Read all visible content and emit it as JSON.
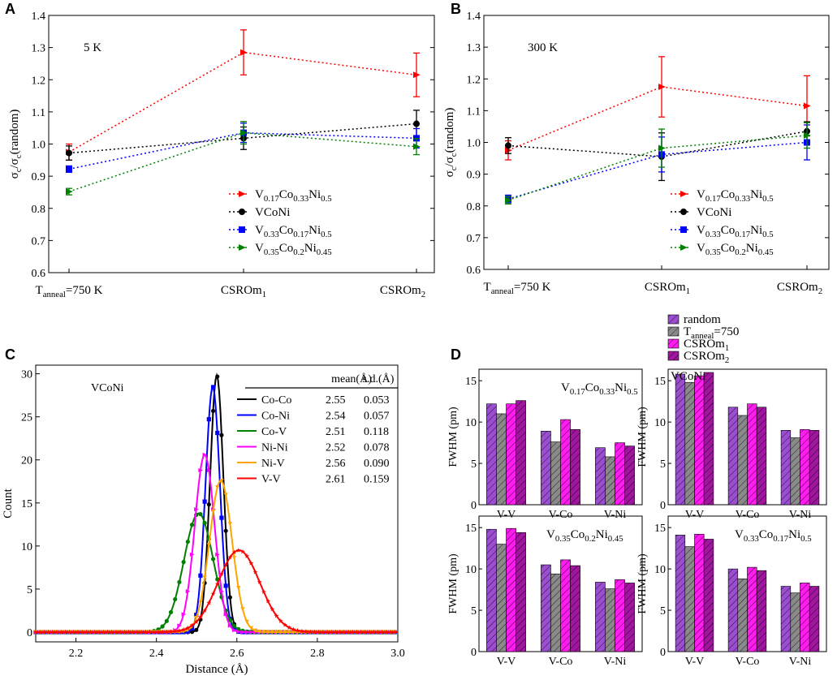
{
  "figure": {
    "panels": [
      "A",
      "B",
      "C",
      "D"
    ]
  },
  "chart_data": [
    {
      "id": "A",
      "type": "line",
      "title": "",
      "annotation": "5 K",
      "ylabel": "σc/σc(random)",
      "categories": [
        "Tanneal=750 K",
        "CSROm1",
        "CSROm2"
      ],
      "ylim": [
        0.6,
        1.4
      ],
      "yticks": [
        "0.6",
        "0.7",
        "0.8",
        "0.9",
        "1.0",
        "1.1",
        "1.2",
        "1.3",
        "1.4"
      ],
      "series": [
        {
          "name": "V0.17Co0.33Ni0.5",
          "color": "#ff0000",
          "marker": "triangle",
          "values": [
            0.975,
            1.285,
            1.215
          ],
          "err": [
            0.025,
            0.07,
            0.068
          ]
        },
        {
          "name": "VCoNi",
          "color": "#000000",
          "marker": "circle",
          "values": [
            0.972,
            1.018,
            1.063
          ],
          "err": [
            0.022,
            0.035,
            0.042
          ]
        },
        {
          "name": "V0.33Co0.17Ni0.5",
          "color": "#0000ff",
          "marker": "square",
          "values": [
            0.922,
            1.035,
            1.018
          ],
          "err": [
            0.01,
            0.03,
            0.03
          ]
        },
        {
          "name": "V0.35Co0.2Ni0.45",
          "color": "#008000",
          "marker": "triangle",
          "values": [
            0.852,
            1.035,
            0.992
          ],
          "err": [
            0.01,
            0.035,
            0.025
          ]
        }
      ]
    },
    {
      "id": "B",
      "type": "line",
      "title": "",
      "annotation": "300 K",
      "ylabel": "σc/σc(random)",
      "categories": [
        "Tanneal=750 K",
        "CSROm1",
        "CSROm2"
      ],
      "ylim": [
        0.6,
        1.4
      ],
      "yticks": [
        "0.6",
        "0.7",
        "0.8",
        "0.9",
        "1.0",
        "1.1",
        "1.2",
        "1.3",
        "1.4"
      ],
      "series": [
        {
          "name": "V0.17Co0.33Ni0.5",
          "color": "#ff0000",
          "marker": "triangle",
          "values": [
            0.975,
            1.175,
            1.115
          ],
          "err": [
            0.03,
            0.095,
            0.095
          ]
        },
        {
          "name": "VCoNi",
          "color": "#000000",
          "marker": "circle",
          "values": [
            0.99,
            0.955,
            1.035
          ],
          "err": [
            0.025,
            0.075,
            0.03
          ]
        },
        {
          "name": "V0.33Co0.17Ni0.5",
          "color": "#0000ff",
          "marker": "square",
          "values": [
            0.822,
            0.962,
            1.0
          ],
          "err": [
            0.012,
            0.055,
            0.055
          ]
        },
        {
          "name": "V0.35Co0.2Ni0.45",
          "color": "#008000",
          "marker": "triangle",
          "values": [
            0.818,
            0.982,
            1.022
          ],
          "err": [
            0.012,
            0.06,
            0.04
          ]
        }
      ]
    },
    {
      "id": "C",
      "type": "line",
      "annotation": "VCoNi",
      "xlabel": "Distance (Å)",
      "ylabel": "Count",
      "xlim": [
        2.1,
        3.0
      ],
      "ylim": [
        0,
        31
      ],
      "xticks": [
        "2.2",
        "2.4",
        "2.6",
        "2.8",
        "3.0"
      ],
      "yticks": [
        "0",
        "5",
        "10",
        "15",
        "20",
        "25",
        "30"
      ],
      "table_headers": [
        "mean(Å)",
        "s.d.(Å)"
      ],
      "series": [
        {
          "name": "Co-Co",
          "color": "#000000",
          "marker": "circle",
          "mean": "2.55",
          "sd": "0.053",
          "mu": 2.55,
          "sigma": 0.0165,
          "peak": 29.8
        },
        {
          "name": "Co-Ni",
          "color": "#0000ff",
          "marker": "square",
          "mean": "2.54",
          "sd": "0.057",
          "mu": 2.54,
          "sigma": 0.0178,
          "peak": 28.5
        },
        {
          "name": "Co-V",
          "color": "#008000",
          "marker": "circle",
          "mean": "2.51",
          "sd": "0.118",
          "mu": 2.505,
          "sigma": 0.0365,
          "peak": 13.8
        },
        {
          "name": "Ni-Ni",
          "color": "#ff00ff",
          "marker": "triangle",
          "mean": "2.52",
          "sd": "0.078",
          "mu": 2.52,
          "sigma": 0.0245,
          "peak": 20.6
        },
        {
          "name": "Ni-V",
          "color": "#ffa500",
          "marker": "tridown",
          "mean": "2.56",
          "sd": "0.090",
          "mu": 2.56,
          "sigma": 0.028,
          "peak": 17.6
        },
        {
          "name": "V-V",
          "color": "#ff0000",
          "marker": "star",
          "mean": "2.61",
          "sd": "0.159",
          "mu": 2.605,
          "sigma": 0.052,
          "peak": 9.5
        }
      ]
    },
    {
      "id": "D",
      "type": "bar",
      "ylabel": "FWHM (pm)",
      "legend": [
        {
          "name": "random",
          "color": "#9b4fd0"
        },
        {
          "name": "Tanneal=750",
          "color": "#8a8a8a"
        },
        {
          "name": "CSROm1",
          "color": "#ff1cf0"
        },
        {
          "name": "CSROm2",
          "color": "#a0169e"
        }
      ],
      "categories": [
        "V-V",
        "V-Co",
        "V-Ni"
      ],
      "ylim": [
        0,
        16
      ],
      "yticks": [
        "0",
        "5",
        "10",
        "15"
      ],
      "subplots": [
        {
          "title": "V0.17Co0.33Ni0.5",
          "values": [
            [
              12.2,
              11.0,
              12.2,
              12.6
            ],
            [
              8.9,
              7.6,
              10.3,
              9.1
            ],
            [
              6.9,
              5.8,
              7.5,
              7.1
            ]
          ]
        },
        {
          "title": "VCoNi",
          "values": [
            [
              15.8,
              14.8,
              15.6,
              16.0
            ],
            [
              11.8,
              10.8,
              12.2,
              11.8
            ],
            [
              9.0,
              8.1,
              9.1,
              9.0
            ]
          ]
        },
        {
          "title": "V0.35Co0.2Ni0.45",
          "values": [
            [
              14.8,
              13.0,
              14.9,
              14.4
            ],
            [
              10.5,
              9.4,
              11.1,
              10.4
            ],
            [
              8.4,
              7.6,
              8.7,
              8.3
            ]
          ]
        },
        {
          "title": "V0.33Co0.17Ni0.5",
          "values": [
            [
              14.1,
              12.7,
              14.2,
              13.6
            ],
            [
              10.0,
              8.8,
              10.2,
              9.8
            ],
            [
              7.9,
              7.1,
              8.3,
              7.9
            ]
          ]
        }
      ]
    }
  ]
}
